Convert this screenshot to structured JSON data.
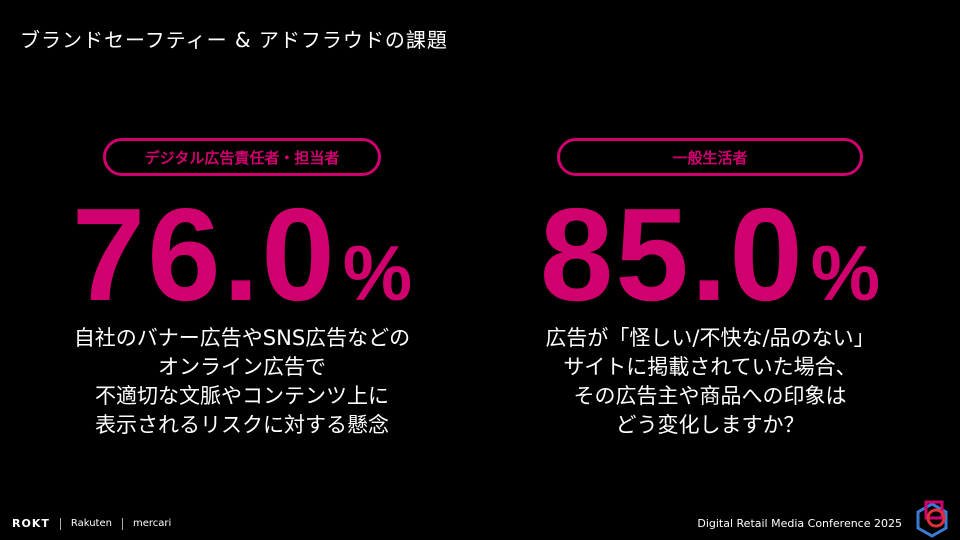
{
  "header": {
    "title": "ブランドセーフティー & アドフラウドの課題"
  },
  "panels": [
    {
      "label": "デジタル広告責任者・担当者",
      "value": "76.0",
      "unit": "%",
      "description": [
        "自社のバナー広告やSNS広告などの",
        "オンライン広告で",
        "不適切な文脈やコンテンツ上に",
        "表示されるリスクに対する懸念"
      ]
    },
    {
      "label": "一般生活者",
      "value": "85.0",
      "unit": "%",
      "description": [
        "広告が「怪しい/不快な/品のない」",
        "サイトに掲載されていた場合、",
        "その広告主や商品への印象は",
        "どう変化しますか？"
      ]
    }
  ],
  "footer": {
    "logos": [
      "ROKT",
      "Rakuten",
      "mercari"
    ],
    "conference": "Digital Retail Media Conference 2025"
  }
}
